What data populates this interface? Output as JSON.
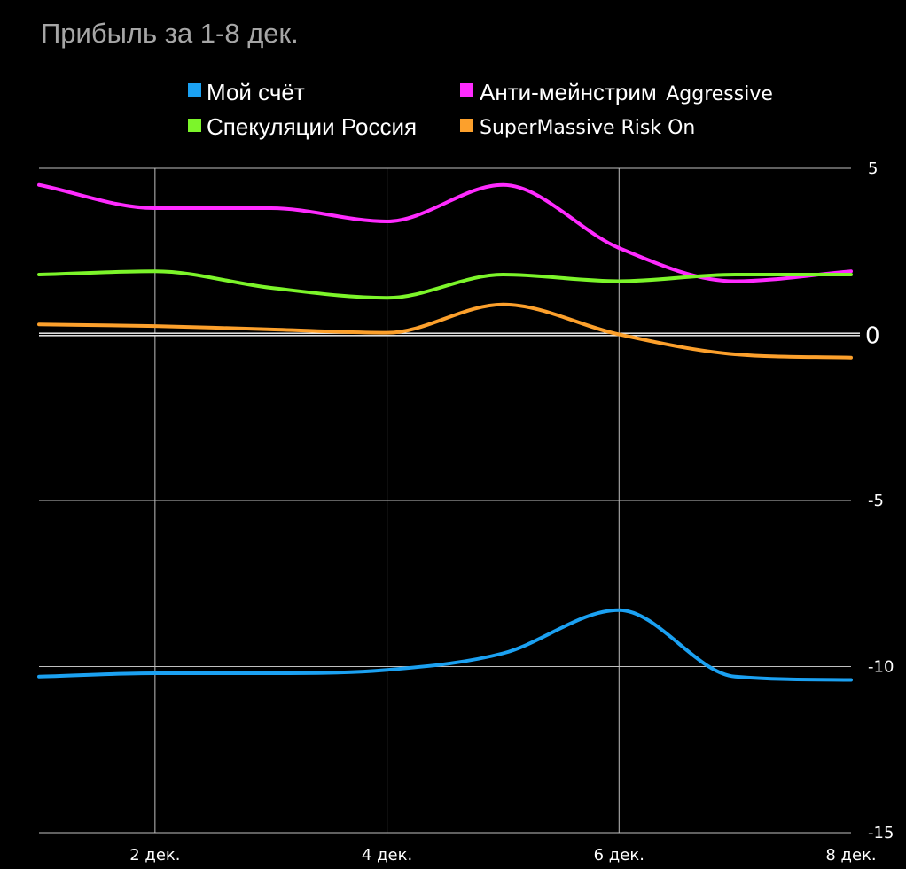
{
  "chart_data": {
    "type": "line",
    "title": "Прибыль за 1-8 дек.",
    "xlabel": "",
    "ylabel": "",
    "x": [
      1,
      2,
      3,
      4,
      5,
      6,
      7,
      8
    ],
    "x_tick_values": [
      2,
      4,
      6,
      8
    ],
    "x_tick_labels": [
      "2 дек.",
      "4 дек.",
      "6 дек.",
      "8 дек."
    ],
    "xlim": [
      1,
      8
    ],
    "ylim": [
      -15,
      5
    ],
    "y_ticks": [
      5,
      0,
      -5,
      -10,
      -15
    ],
    "y_tick_labels": [
      "5",
      "0",
      "-5",
      "-10",
      "-15"
    ],
    "y_axis_position": "right",
    "grid": true,
    "zero_line": true,
    "legend_position": "top",
    "series": [
      {
        "name_main": "Мой счёт",
        "name_suffix": "",
        "color": "#1ba1f2",
        "values": [
          -10.3,
          -10.2,
          -10.2,
          -10.1,
          -9.6,
          -8.3,
          -10.3,
          -10.4
        ]
      },
      {
        "name_main": "Анти-мейнстрим",
        "name_suffix": "Aggressive",
        "color": "#ff2bff",
        "values": [
          4.5,
          3.8,
          3.8,
          3.4,
          4.5,
          2.6,
          1.6,
          1.9
        ]
      },
      {
        "name_main": "Спекуляции Россия",
        "name_suffix": "",
        "color": "#7cf52a",
        "values": [
          1.8,
          1.9,
          1.4,
          1.1,
          1.8,
          1.6,
          1.8,
          1.8
        ]
      },
      {
        "name_main": "",
        "name_suffix": "SuperMassive Risk On",
        "color": "#fca02c",
        "values": [
          0.3,
          0.25,
          0.15,
          0.05,
          0.9,
          0.0,
          -0.6,
          -0.7
        ]
      }
    ]
  }
}
